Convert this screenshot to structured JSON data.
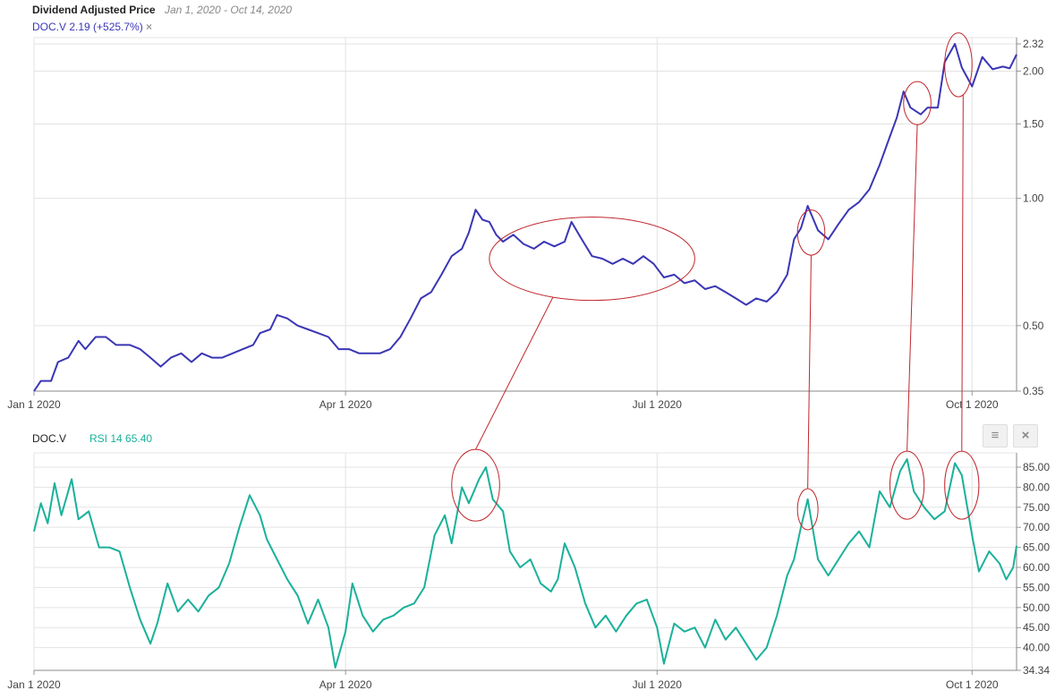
{
  "header": {
    "title": "Dividend Adjusted Price",
    "range": "Jan 1, 2020 - Oct 14, 2020",
    "ticker_label": "DOC.V 2.19 (+525.7%)",
    "remove_symbol": "×"
  },
  "rsi_header": {
    "ticker": "DOC.V",
    "indicator": "RSI 14 65.40",
    "menu_icon": "≡",
    "close_icon": "×"
  },
  "colors": {
    "price_line": "#3a36b5",
    "rsi_line": "#1ab19a",
    "annotation": "#c0282e",
    "grid": "#e3e3e3"
  },
  "chart_data": [
    {
      "type": "line",
      "title": "Dividend Adjusted Price",
      "y_scale": "log",
      "ylim": [
        0.35,
        2.32
      ],
      "y_ticks": [
        "2.32",
        "2.00",
        "1.50",
        "1.00",
        "0.50",
        "0.35"
      ],
      "x_ticks": [
        "Jan 1 2020",
        "Apr 1 2020",
        "Jul 1 2020",
        "Oct 1 2020"
      ],
      "xlim": [
        "2020-01-01",
        "2020-10-14"
      ],
      "grid": true,
      "series": [
        {
          "name": "DOC.V",
          "points": [
            [
              "2020-01-01",
              0.35
            ],
            [
              "2020-01-03",
              0.37
            ],
            [
              "2020-01-06",
              0.37
            ],
            [
              "2020-01-08",
              0.41
            ],
            [
              "2020-01-11",
              0.42
            ],
            [
              "2020-01-14",
              0.46
            ],
            [
              "2020-01-16",
              0.44
            ],
            [
              "2020-01-19",
              0.47
            ],
            [
              "2020-01-22",
              0.47
            ],
            [
              "2020-01-25",
              0.45
            ],
            [
              "2020-01-29",
              0.45
            ],
            [
              "2020-02-01",
              0.44
            ],
            [
              "2020-02-04",
              0.42
            ],
            [
              "2020-02-07",
              0.4
            ],
            [
              "2020-02-10",
              0.42
            ],
            [
              "2020-02-13",
              0.43
            ],
            [
              "2020-02-16",
              0.41
            ],
            [
              "2020-02-19",
              0.43
            ],
            [
              "2020-02-22",
              0.42
            ],
            [
              "2020-02-25",
              0.42
            ],
            [
              "2020-02-28",
              0.43
            ],
            [
              "2020-03-02",
              0.44
            ],
            [
              "2020-03-05",
              0.45
            ],
            [
              "2020-03-07",
              0.48
            ],
            [
              "2020-03-10",
              0.49
            ],
            [
              "2020-03-12",
              0.53
            ],
            [
              "2020-03-15",
              0.52
            ],
            [
              "2020-03-18",
              0.5
            ],
            [
              "2020-03-21",
              0.49
            ],
            [
              "2020-03-24",
              0.48
            ],
            [
              "2020-03-27",
              0.47
            ],
            [
              "2020-03-30",
              0.44
            ],
            [
              "2020-04-02",
              0.44
            ],
            [
              "2020-04-05",
              0.43
            ],
            [
              "2020-04-08",
              0.43
            ],
            [
              "2020-04-11",
              0.43
            ],
            [
              "2020-04-14",
              0.44
            ],
            [
              "2020-04-17",
              0.47
            ],
            [
              "2020-04-20",
              0.52
            ],
            [
              "2020-04-23",
              0.58
            ],
            [
              "2020-04-26",
              0.6
            ],
            [
              "2020-04-29",
              0.66
            ],
            [
              "2020-05-02",
              0.73
            ],
            [
              "2020-05-05",
              0.76
            ],
            [
              "2020-05-07",
              0.83
            ],
            [
              "2020-05-09",
              0.94
            ],
            [
              "2020-05-11",
              0.89
            ],
            [
              "2020-05-13",
              0.88
            ],
            [
              "2020-05-15",
              0.82
            ],
            [
              "2020-05-17",
              0.79
            ],
            [
              "2020-05-20",
              0.82
            ],
            [
              "2020-05-23",
              0.78
            ],
            [
              "2020-05-26",
              0.76
            ],
            [
              "2020-05-29",
              0.79
            ],
            [
              "2020-06-01",
              0.77
            ],
            [
              "2020-06-04",
              0.79
            ],
            [
              "2020-06-06",
              0.88
            ],
            [
              "2020-06-09",
              0.8
            ],
            [
              "2020-06-12",
              0.73
            ],
            [
              "2020-06-15",
              0.72
            ],
            [
              "2020-06-18",
              0.7
            ],
            [
              "2020-06-21",
              0.72
            ],
            [
              "2020-06-24",
              0.7
            ],
            [
              "2020-06-27",
              0.73
            ],
            [
              "2020-06-30",
              0.7
            ],
            [
              "2020-07-03",
              0.65
            ],
            [
              "2020-07-06",
              0.66
            ],
            [
              "2020-07-09",
              0.63
            ],
            [
              "2020-07-12",
              0.64
            ],
            [
              "2020-07-15",
              0.61
            ],
            [
              "2020-07-18",
              0.62
            ],
            [
              "2020-07-21",
              0.6
            ],
            [
              "2020-07-24",
              0.58
            ],
            [
              "2020-07-27",
              0.56
            ],
            [
              "2020-07-30",
              0.58
            ],
            [
              "2020-08-02",
              0.57
            ],
            [
              "2020-08-05",
              0.6
            ],
            [
              "2020-08-08",
              0.66
            ],
            [
              "2020-08-10",
              0.8
            ],
            [
              "2020-08-12",
              0.85
            ],
            [
              "2020-08-14",
              0.96
            ],
            [
              "2020-08-17",
              0.84
            ],
            [
              "2020-08-20",
              0.8
            ],
            [
              "2020-08-23",
              0.87
            ],
            [
              "2020-08-26",
              0.94
            ],
            [
              "2020-08-29",
              0.98
            ],
            [
              "2020-09-01",
              1.05
            ],
            [
              "2020-09-04",
              1.2
            ],
            [
              "2020-09-07",
              1.4
            ],
            [
              "2020-09-09",
              1.55
            ],
            [
              "2020-09-11",
              1.79
            ],
            [
              "2020-09-13",
              1.64
            ],
            [
              "2020-09-16",
              1.58
            ],
            [
              "2020-09-18",
              1.64
            ],
            [
              "2020-09-21",
              1.64
            ],
            [
              "2020-09-23",
              2.1
            ],
            [
              "2020-09-26",
              2.32
            ],
            [
              "2020-09-28",
              2.04
            ],
            [
              "2020-10-01",
              1.84
            ],
            [
              "2020-10-04",
              2.16
            ],
            [
              "2020-10-07",
              2.02
            ],
            [
              "2020-10-10",
              2.05
            ],
            [
              "2020-10-12",
              2.03
            ],
            [
              "2020-10-14",
              2.19
            ]
          ]
        }
      ]
    },
    {
      "type": "line",
      "title": "RSI 14 65.40",
      "ylim": [
        34.34,
        87
      ],
      "y_ticks": [
        "85.00",
        "80.00",
        "75.00",
        "70.00",
        "65.00",
        "60.00",
        "55.00",
        "50.00",
        "45.00",
        "40.00",
        "34.34"
      ],
      "x_ticks": [
        "Jan 1 2020",
        "Apr 1 2020",
        "Jul 1 2020",
        "Oct 1 2020"
      ],
      "xlim": [
        "2020-01-01",
        "2020-10-14"
      ],
      "grid": true,
      "series": [
        {
          "name": "RSI 14",
          "points": [
            [
              "2020-01-01",
              69
            ],
            [
              "2020-01-03",
              76
            ],
            [
              "2020-01-05",
              71
            ],
            [
              "2020-01-07",
              81
            ],
            [
              "2020-01-09",
              73
            ],
            [
              "2020-01-12",
              82
            ],
            [
              "2020-01-14",
              72
            ],
            [
              "2020-01-17",
              74
            ],
            [
              "2020-01-20",
              65
            ],
            [
              "2020-01-23",
              65
            ],
            [
              "2020-01-26",
              64
            ],
            [
              "2020-01-29",
              55
            ],
            [
              "2020-02-01",
              47
            ],
            [
              "2020-02-04",
              41
            ],
            [
              "2020-02-06",
              46
            ],
            [
              "2020-02-09",
              56
            ],
            [
              "2020-02-12",
              49
            ],
            [
              "2020-02-15",
              52
            ],
            [
              "2020-02-18",
              49
            ],
            [
              "2020-02-21",
              53
            ],
            [
              "2020-02-24",
              55
            ],
            [
              "2020-02-27",
              61
            ],
            [
              "2020-03-01",
              70
            ],
            [
              "2020-03-04",
              78
            ],
            [
              "2020-03-07",
              73
            ],
            [
              "2020-03-09",
              67
            ],
            [
              "2020-03-12",
              62
            ],
            [
              "2020-03-15",
              57
            ],
            [
              "2020-03-18",
              53
            ],
            [
              "2020-03-21",
              46
            ],
            [
              "2020-03-24",
              52
            ],
            [
              "2020-03-27",
              45
            ],
            [
              "2020-03-29",
              35
            ],
            [
              "2020-04-01",
              44
            ],
            [
              "2020-04-03",
              56
            ],
            [
              "2020-04-06",
              48
            ],
            [
              "2020-04-09",
              44
            ],
            [
              "2020-04-12",
              47
            ],
            [
              "2020-04-15",
              48
            ],
            [
              "2020-04-18",
              50
            ],
            [
              "2020-04-21",
              51
            ],
            [
              "2020-04-24",
              55
            ],
            [
              "2020-04-27",
              68
            ],
            [
              "2020-04-30",
              73
            ],
            [
              "2020-05-02",
              66
            ],
            [
              "2020-05-05",
              80
            ],
            [
              "2020-05-07",
              76
            ],
            [
              "2020-05-10",
              82
            ],
            [
              "2020-05-12",
              85
            ],
            [
              "2020-05-14",
              77
            ],
            [
              "2020-05-17",
              74
            ],
            [
              "2020-05-19",
              64
            ],
            [
              "2020-05-22",
              60
            ],
            [
              "2020-05-25",
              62
            ],
            [
              "2020-05-28",
              56
            ],
            [
              "2020-05-31",
              54
            ],
            [
              "2020-06-02",
              57
            ],
            [
              "2020-06-04",
              66
            ],
            [
              "2020-06-07",
              60
            ],
            [
              "2020-06-10",
              51
            ],
            [
              "2020-06-13",
              45
            ],
            [
              "2020-06-16",
              48
            ],
            [
              "2020-06-19",
              44
            ],
            [
              "2020-06-22",
              48
            ],
            [
              "2020-06-25",
              51
            ],
            [
              "2020-06-28",
              52
            ],
            [
              "2020-07-01",
              45
            ],
            [
              "2020-07-03",
              36
            ],
            [
              "2020-07-06",
              46
            ],
            [
              "2020-07-09",
              44
            ],
            [
              "2020-07-12",
              45
            ],
            [
              "2020-07-15",
              40
            ],
            [
              "2020-07-18",
              47
            ],
            [
              "2020-07-21",
              42
            ],
            [
              "2020-07-24",
              45
            ],
            [
              "2020-07-27",
              41
            ],
            [
              "2020-07-30",
              37
            ],
            [
              "2020-08-02",
              40
            ],
            [
              "2020-08-05",
              48
            ],
            [
              "2020-08-08",
              58
            ],
            [
              "2020-08-10",
              62
            ],
            [
              "2020-08-12",
              70
            ],
            [
              "2020-08-14",
              77
            ],
            [
              "2020-08-17",
              62
            ],
            [
              "2020-08-20",
              58
            ],
            [
              "2020-08-23",
              62
            ],
            [
              "2020-08-26",
              66
            ],
            [
              "2020-08-29",
              69
            ],
            [
              "2020-09-01",
              65
            ],
            [
              "2020-09-04",
              79
            ],
            [
              "2020-09-07",
              75
            ],
            [
              "2020-09-10",
              84
            ],
            [
              "2020-09-12",
              87
            ],
            [
              "2020-09-14",
              79
            ],
            [
              "2020-09-17",
              75
            ],
            [
              "2020-09-20",
              72
            ],
            [
              "2020-09-23",
              74
            ],
            [
              "2020-09-26",
              86
            ],
            [
              "2020-09-28",
              83
            ],
            [
              "2020-10-01",
              68
            ],
            [
              "2020-10-03",
              59
            ],
            [
              "2020-10-06",
              64
            ],
            [
              "2020-10-09",
              61
            ],
            [
              "2020-10-11",
              57
            ],
            [
              "2020-10-13",
              60
            ],
            [
              "2020-10-14",
              65.4
            ]
          ]
        }
      ]
    }
  ],
  "annotations": {
    "price_ellipses": [
      {
        "date": "2020-06-12",
        "value": 0.72,
        "rx_days": 30,
        "ry_fraction": 0.12
      },
      {
        "date": "2020-08-15",
        "value": 0.83,
        "rx_days": 4,
        "ry_fraction": 0.065
      },
      {
        "date": "2020-09-15",
        "value": 1.68,
        "rx_days": 4,
        "ry_fraction": 0.062
      },
      {
        "date": "2020-09-27",
        "value": 2.07,
        "rx_days": 4,
        "ry_fraction": 0.092
      }
    ],
    "rsi_ellipses": [
      {
        "date": "2020-05-09",
        "value": 80.5,
        "rx_days": 7
      },
      {
        "date": "2020-08-14",
        "value": 74.5,
        "rx_days": 3
      },
      {
        "date": "2020-09-12",
        "value": 80.5,
        "rx_days": 5
      },
      {
        "date": "2020-09-28",
        "value": 80.5,
        "rx_days": 5
      }
    ]
  }
}
